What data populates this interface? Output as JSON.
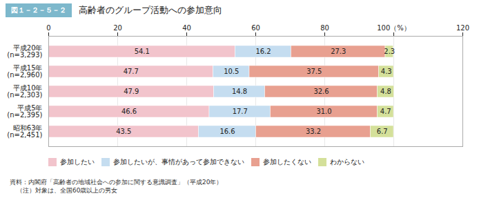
{
  "chart_data": {
    "type": "bar",
    "orientation": "horizontal",
    "stacked": true,
    "title": "高齢者のグループ活動への参加意向",
    "subtitle": "図１－２－５－２",
    "categories": [
      "平成20年\n(n=3,293)",
      "平成15年\n(n=2,960)",
      "平成10年\n(n=2,303)",
      "平成5年\n(n=2,395)",
      "昭和63年\n(n=2,451)"
    ],
    "series": [
      {
        "name": "参加したい",
        "color": "#f2c4cc",
        "values": [
          54.1,
          47.7,
          47.9,
          46.6,
          43.5
        ]
      },
      {
        "name": "参加したいが、事情があって参加できない",
        "color": "#c5ddf0",
        "values": [
          16.2,
          10.5,
          14.8,
          17.7,
          16.6
        ]
      },
      {
        "name": "参加したくない",
        "color": "#e8a090",
        "values": [
          27.3,
          37.5,
          32.6,
          31.0,
          33.2
        ],
        "value_labels": [
          "27.3",
          "37.5",
          "32.6",
          "31.0",
          "33.2"
        ]
      },
      {
        "name": "わからない",
        "color": "#d4e09a",
        "values": [
          2.3,
          4.3,
          4.8,
          4.7,
          6.7
        ]
      }
    ],
    "xlim": [
      0,
      120
    ],
    "xticks": [
      0,
      20,
      40,
      60,
      80,
      {
        "value": 100,
        "label": "100（%）"
      },
      120
    ],
    "grid": true,
    "legend": "bottom",
    "data_labels": true,
    "annotations": [
      "資料：内閣府「高齢者の地域社会への参加に関する意識調査」（平成20年）",
      "（注）対象は、全国60歳以上の男女"
    ]
  }
}
